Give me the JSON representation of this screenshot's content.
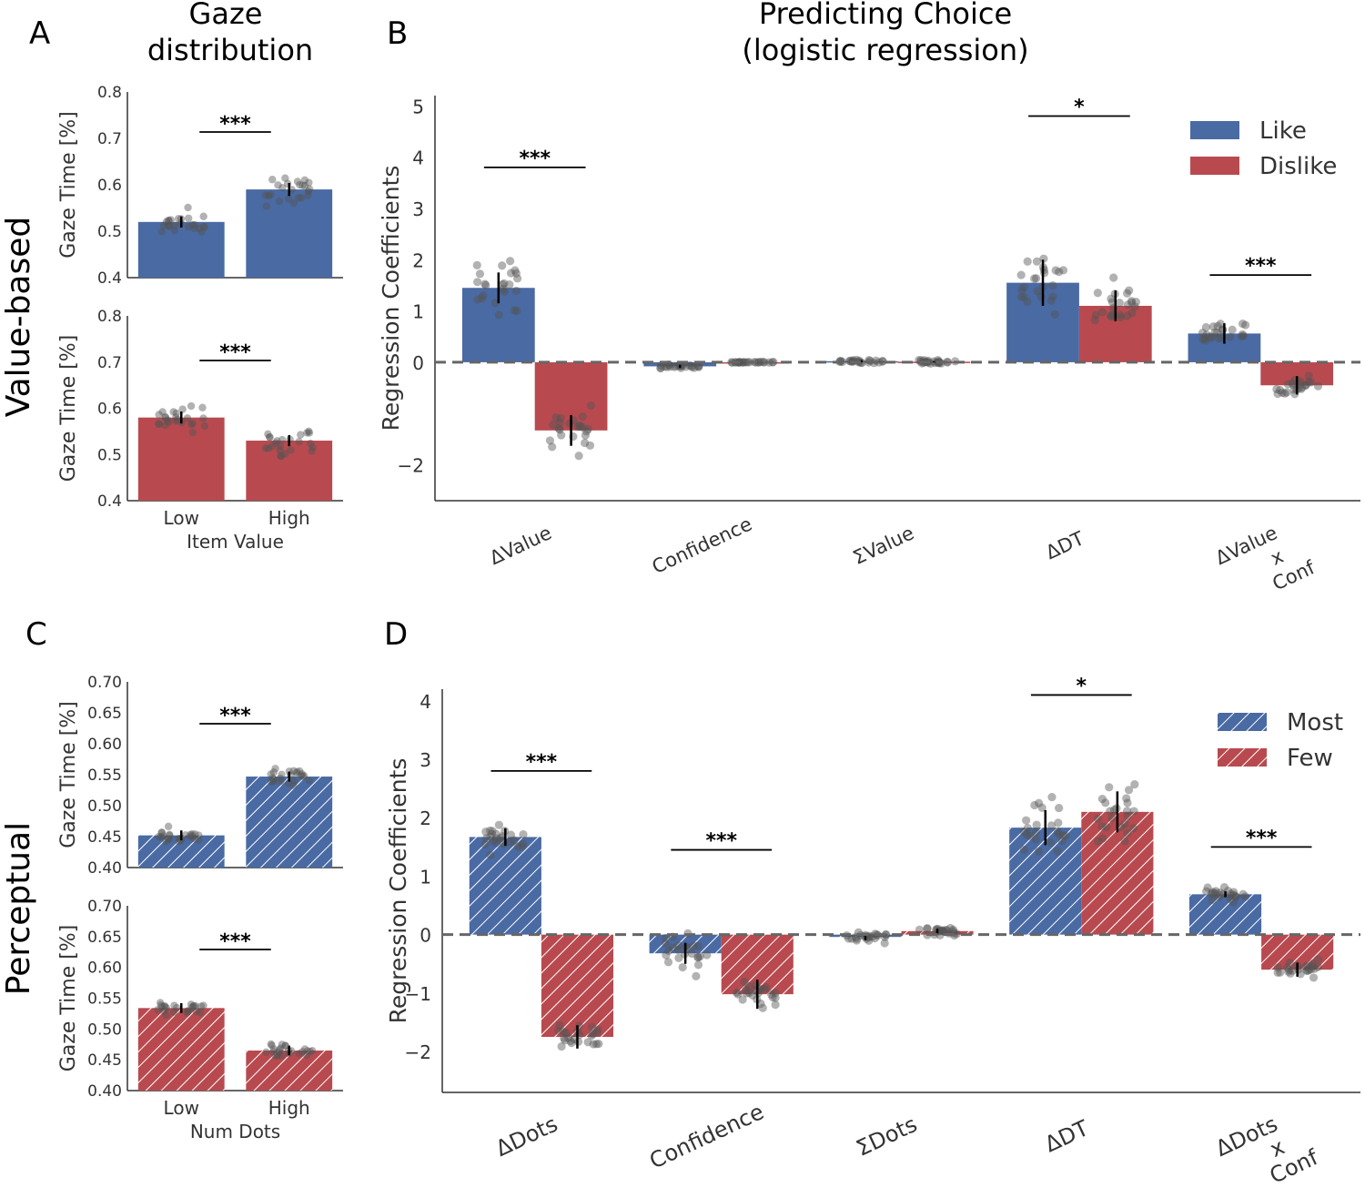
{
  "panel_labels": {
    "a": "A",
    "b": "B",
    "c": "C",
    "d": "D"
  },
  "row_labels": {
    "top": "Value-based",
    "bottom": "Perceptual"
  },
  "titles": {
    "a_line1": "Gaze",
    "a_line2": "distribution",
    "b_line1": "Predicting Choice",
    "b_line2": "(logistic regression)"
  },
  "colors": {
    "blue": "#4a6aa3",
    "red": "#b84a4f",
    "dots": "#555555"
  },
  "chart_data": [
    {
      "id": "A_top",
      "type": "bar",
      "ylabel": "Gaze Time [%]",
      "ylim": [
        0.4,
        0.8
      ],
      "yticks": [
        "0.4",
        "0.5",
        "0.6",
        "0.7",
        "0.8"
      ],
      "categories": [
        "Low",
        "High"
      ],
      "values": [
        0.52,
        0.59
      ],
      "errors": [
        0.012,
        0.014
      ],
      "color": "blue",
      "hatch": false,
      "significance": "***"
    },
    {
      "id": "A_bottom",
      "type": "bar",
      "ylabel": "Gaze Time [%]",
      "ylim": [
        0.4,
        0.8
      ],
      "yticks": [
        "0.4",
        "0.5",
        "0.6",
        "0.7",
        "0.8"
      ],
      "categories": [
        "Low",
        "High"
      ],
      "values": [
        0.58,
        0.53
      ],
      "errors": [
        0.013,
        0.012
      ],
      "color": "red",
      "hatch": false,
      "significance": "***",
      "xticklabels": [
        "Low",
        "High"
      ],
      "xlabel": "Item Value"
    },
    {
      "id": "B",
      "type": "bar",
      "ylabel": "Regression Coefficients",
      "ylim": [
        -2.7,
        5.2
      ],
      "yticks": [
        "5",
        "4",
        "3",
        "2",
        "1",
        "0",
        "−2"
      ],
      "categories": [
        "ΔValue",
        "Confidence",
        "ΣValue",
        "ΔDT",
        "ΔValue\nx\nConf"
      ],
      "series": [
        {
          "name": "Like",
          "color": "blue",
          "values": [
            1.45,
            -0.08,
            0.02,
            1.55,
            0.56
          ],
          "errors": [
            0.3,
            0.03,
            0.02,
            0.45,
            0.2
          ]
        },
        {
          "name": "Dislike",
          "color": "red",
          "values": [
            -1.33,
            0.0,
            0.01,
            1.1,
            -0.45
          ],
          "errors": [
            0.3,
            0.0,
            0.01,
            0.3,
            0.18
          ]
        }
      ],
      "significance": [
        {
          "category": 0,
          "label": "***",
          "y": 3.8
        },
        {
          "category": 3,
          "label": "*",
          "y": 4.8
        },
        {
          "category": 4,
          "label": "***",
          "y": 1.7
        }
      ],
      "legend": {
        "position": "top-right",
        "entries": [
          "Like",
          "Dislike"
        ]
      }
    },
    {
      "id": "C_top",
      "type": "bar",
      "ylabel": "Gaze Time [%]",
      "ylim": [
        0.4,
        0.7
      ],
      "yticks": [
        "0.40",
        "0.45",
        "0.50",
        "0.55",
        "0.60",
        "0.65",
        "0.70"
      ],
      "categories": [
        "Low",
        "High"
      ],
      "values": [
        0.452,
        0.547
      ],
      "errors": [
        0.008,
        0.008
      ],
      "color": "blue",
      "hatch": true,
      "significance": "***"
    },
    {
      "id": "C_bottom",
      "type": "bar",
      "ylabel": "Gaze Time [%]",
      "ylim": [
        0.4,
        0.7
      ],
      "yticks": [
        "0.40",
        "0.45",
        "0.50",
        "0.55",
        "0.60",
        "0.65",
        "0.70"
      ],
      "categories": [
        "Low",
        "High"
      ],
      "values": [
        0.534,
        0.465
      ],
      "errors": [
        0.008,
        0.008
      ],
      "color": "red",
      "hatch": true,
      "significance": "***",
      "xticklabels": [
        "Low",
        "High"
      ],
      "xlabel": "Num Dots"
    },
    {
      "id": "D",
      "type": "bar",
      "ylabel": "Regression Coefficients",
      "ylim": [
        -2.7,
        4.2
      ],
      "yticks": [
        "4",
        "3",
        "2",
        "1",
        "0",
        "−1",
        "−2"
      ],
      "categories": [
        "ΔDots",
        "Confidence",
        "ΣDots",
        "ΔDT",
        "ΔDots\nx\nConf"
      ],
      "series": [
        {
          "name": "Most",
          "color": "blue",
          "values": [
            1.67,
            -0.32,
            -0.04,
            1.83,
            0.69
          ],
          "errors": [
            0.15,
            0.18,
            0.06,
            0.3,
            0.05
          ]
        },
        {
          "name": "Few",
          "color": "red",
          "values": [
            -1.75,
            -1.02,
            0.06,
            2.1,
            -0.6
          ],
          "errors": [
            0.2,
            0.25,
            0.04,
            0.35,
            0.12
          ]
        }
      ],
      "hatch": true,
      "significance": [
        {
          "category": 0,
          "label": "***",
          "y": 2.8
        },
        {
          "category": 1,
          "label": "***",
          "y": 1.45
        },
        {
          "category": 3,
          "label": "*",
          "y": 4.1
        },
        {
          "category": 4,
          "label": "***",
          "y": 1.5
        }
      ],
      "legend": {
        "position": "top-right",
        "entries": [
          "Most",
          "Few"
        ]
      }
    }
  ]
}
